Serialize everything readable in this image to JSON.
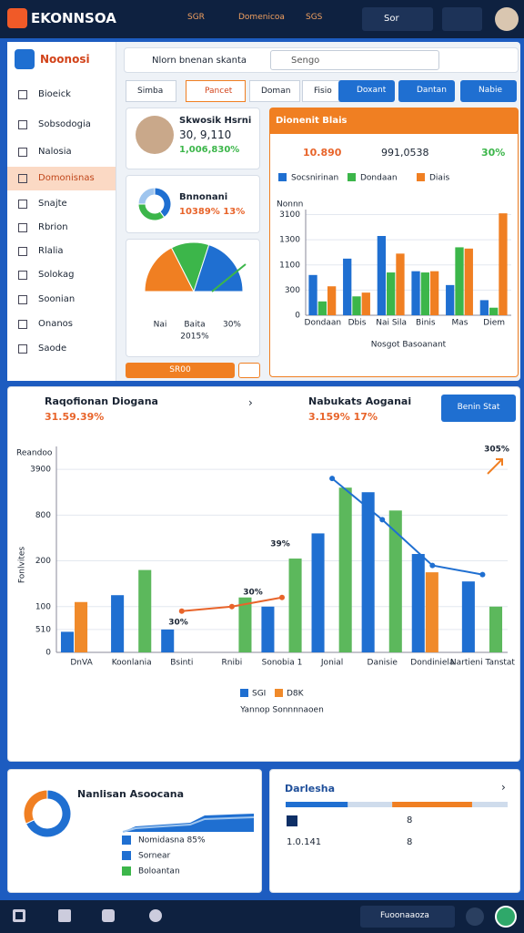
{
  "topbar": {
    "brand": "EKONNSOA",
    "items": [
      "SGR",
      "Domenicoa",
      "SGS"
    ],
    "user": "Sor"
  },
  "sidebar": {
    "title": "Noonosi",
    "items": [
      "Bioeick",
      "Sobsodogia",
      "Nalosia",
      "Domonisnas",
      "Snajte",
      "Rbrion",
      "Rlalia",
      "Solokag",
      "Soonian",
      "Onanos",
      "Saode"
    ],
    "active": 3
  },
  "toolbar": {
    "title": "Nlorn bnenan skanta",
    "search": "Sengo"
  },
  "tabs": [
    "Simba",
    "Pancet",
    "Doman",
    "Fisio"
  ],
  "actions": [
    "Doxant",
    "Dantan",
    "Nabie"
  ],
  "profile": {
    "name": "Skwosik Hsrni",
    "value": "30, 9,110",
    "change": "1,006,830%"
  },
  "donut_card": {
    "title": "Bnnonani",
    "stat": "10389% 13%",
    "values": [
      40,
      35,
      25
    ],
    "colors": [
      "#1f6fd1",
      "#3cb64a",
      "#9fc5ee"
    ]
  },
  "gauge": {
    "values": [
      35,
      25,
      40
    ],
    "colors": [
      "#f07f22",
      "#3cb64a",
      "#1f6fd1"
    ],
    "labels": [
      "Nai",
      "Baita",
      "30%"
    ],
    "footer": "2015%"
  },
  "button": "SR00",
  "panel": {
    "title": "Dionenit Blais",
    "stats": [
      "10.890",
      "991,0538",
      "30%"
    ],
    "chart": {
      "type": "bar",
      "ylabel": "Nonnn",
      "xlabel": "Nosgot Basoanant",
      "categories": [
        "Dondaan",
        "Dbis",
        "Nai Sila",
        "Binis",
        "Mas",
        "Diem"
      ],
      "series": [
        {
          "name": "Socsnirinan",
          "color": "#1f6fd1",
          "values": [
            160,
            225,
            315,
            175,
            120,
            60
          ]
        },
        {
          "name": "Dondaan",
          "color": "#3cb64a",
          "values": [
            55,
            75,
            170,
            170,
            270,
            30
          ]
        },
        {
          "name": "Diais",
          "color": "#f07f22",
          "values": [
            115,
            90,
            245,
            175,
            265,
            405
          ]
        }
      ],
      "ylim": [
        0,
        420
      ],
      "yticks": [
        0,
        {
          "value": 100,
          "label": "300"
        },
        {
          "value": 200,
          "label": "1100"
        },
        {
          "value": 300,
          "label": "1300"
        },
        {
          "value": 400,
          "label": "3100"
        }
      ]
    }
  },
  "section": {
    "title1": "Raqofionan Diogana",
    "stat1": "31.59.39%",
    "title2": "Nabukats Aoganai",
    "stat2": "3.159% 17%",
    "button": "Benin Stat",
    "chart": {
      "type": "bar",
      "ylabel": "Reandoo",
      "yside": "Fonlvites",
      "xlabel": "Yannop Sonnnnaoen",
      "categories": [
        "DnVA",
        "Koonlania",
        "Bsinti",
        "Rnibi",
        "Sonobia 1",
        "Jonial",
        "Danisie",
        "Dondiniela",
        "Nartieni Tanstat"
      ],
      "series": [
        {
          "name": "SGI",
          "color": "#1f6fd1",
          "values": [
            45,
            125,
            50,
            0,
            100,
            260,
            350,
            215,
            155
          ]
        },
        {
          "name": "D8K",
          "color": "#f08a2a",
          "values": [
            110,
            0,
            0,
            0,
            0,
            0,
            0,
            175,
            0
          ]
        },
        {
          "color": "#5cb85c",
          "values": [
            0,
            180,
            0,
            120,
            205,
            360,
            310,
            0,
            100
          ]
        }
      ],
      "lines": [
        {
          "color": "#1f6fd1",
          "values": [
            null,
            null,
            null,
            null,
            null,
            380,
            290,
            190,
            170
          ]
        },
        {
          "color": "#e8642a",
          "values": [
            null,
            null,
            90,
            100,
            120,
            null,
            null,
            null,
            null
          ]
        }
      ],
      "annotations": [
        "30%",
        "39%",
        "30%",
        "305%"
      ],
      "ylim": [
        0,
        450
      ],
      "yticks": [
        0,
        {
          "value": 50,
          "label": "510"
        },
        100,
        200,
        {
          "value": 300,
          "label": "800"
        },
        {
          "value": 400,
          "label": "3900"
        }
      ]
    }
  },
  "bottom_left": {
    "title": "Nanlisan Asoocana",
    "donut": [
      68,
      32
    ],
    "colors": [
      "#1f6fd1",
      "#f07f22"
    ],
    "legend": [
      "Nomidasna 85%",
      "Sornear",
      "Boloantan"
    ]
  },
  "bottom_right": {
    "title": "Darlesha",
    "progress": [
      28,
      20,
      36,
      16
    ],
    "colors": [
      "#1f6fd1",
      "#cfdcec",
      "#f07f22",
      "#cfdcec"
    ],
    "rows": [
      "8",
      "1.0.141",
      "8"
    ]
  },
  "bottom_nav": {
    "label": "Fuoonaaoza"
  }
}
